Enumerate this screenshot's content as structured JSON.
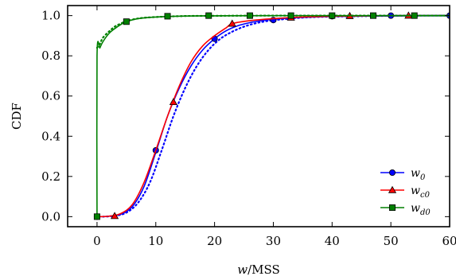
{
  "chart_data": {
    "type": "line",
    "title": "",
    "xlabel_var": "w",
    "xlabel_unit": "/MSS",
    "ylabel": "CDF",
    "xlim": [
      -5,
      60
    ],
    "ylim": [
      -0.05,
      1.05
    ],
    "xticks": [
      0,
      10,
      20,
      30,
      40,
      50,
      60
    ],
    "yticks": [
      0.0,
      0.2,
      0.4,
      0.6,
      0.8,
      1.0
    ],
    "ytick_labels": [
      "0.0",
      "0.2",
      "0.4",
      "0.6",
      "0.8",
      "1.0"
    ],
    "grid": false,
    "legend_position": "bottom-right",
    "series": [
      {
        "name": "w",
        "name_sub": "0",
        "color": "#0000ff",
        "marker": "circle",
        "curve": [
          [
            0,
            0.0
          ],
          [
            2,
            0.002
          ],
          [
            4,
            0.012
          ],
          [
            6,
            0.05
          ],
          [
            8,
            0.15
          ],
          [
            10,
            0.32
          ],
          [
            12,
            0.5
          ],
          [
            14,
            0.64
          ],
          [
            16,
            0.75
          ],
          [
            18,
            0.83
          ],
          [
            20,
            0.885
          ],
          [
            22,
            0.925
          ],
          [
            24,
            0.95
          ],
          [
            26,
            0.965
          ],
          [
            28,
            0.975
          ],
          [
            30,
            0.982
          ],
          [
            34,
            0.99
          ],
          [
            40,
            0.996
          ],
          [
            50,
            0.999
          ],
          [
            60,
            1.0
          ]
        ],
        "reference_curve": [
          [
            1,
            0.0
          ],
          [
            3,
            0.004
          ],
          [
            5,
            0.02
          ],
          [
            7,
            0.07
          ],
          [
            9,
            0.17
          ],
          [
            11,
            0.33
          ],
          [
            13,
            0.5
          ],
          [
            15,
            0.64
          ],
          [
            17,
            0.75
          ],
          [
            19,
            0.83
          ],
          [
            21,
            0.885
          ],
          [
            23,
            0.92
          ],
          [
            25,
            0.945
          ],
          [
            27,
            0.962
          ],
          [
            29,
            0.973
          ],
          [
            31,
            0.98
          ],
          [
            35,
            0.99
          ],
          [
            40,
            0.995
          ],
          [
            50,
            0.999
          ],
          [
            60,
            1.0
          ]
        ],
        "markers": [
          [
            0,
            0.0
          ],
          [
            10,
            0.33
          ],
          [
            20,
            0.885
          ],
          [
            30,
            0.978
          ],
          [
            40,
            0.997
          ],
          [
            50,
            1.0
          ],
          [
            60,
            1.0
          ]
        ]
      },
      {
        "name": "w",
        "name_sub": "c0",
        "color": "#ff0000",
        "marker": "triangle",
        "curve": [
          [
            0,
            0.0
          ],
          [
            2,
            0.002
          ],
          [
            4,
            0.015
          ],
          [
            6,
            0.06
          ],
          [
            8,
            0.17
          ],
          [
            10,
            0.33
          ],
          [
            12,
            0.5
          ],
          [
            14,
            0.65
          ],
          [
            16,
            0.77
          ],
          [
            18,
            0.85
          ],
          [
            20,
            0.9
          ],
          [
            22,
            0.94
          ],
          [
            23,
            0.96
          ],
          [
            26,
            0.975
          ],
          [
            30,
            0.985
          ],
          [
            35,
            0.993
          ],
          [
            43,
            0.998
          ],
          [
            53,
            1.0
          ],
          [
            60,
            1.0
          ]
        ],
        "markers": [
          [
            3,
            0.003
          ],
          [
            13,
            0.57
          ],
          [
            23,
            0.96
          ],
          [
            33,
            0.99
          ],
          [
            43,
            0.998
          ],
          [
            53,
            1.0
          ]
        ]
      },
      {
        "name": "w",
        "name_sub": "d0",
        "color": "#008000",
        "marker": "square",
        "curve": [
          [
            0,
            0.0
          ],
          [
            0,
            0.8
          ],
          [
            0.5,
            0.84
          ],
          [
            1,
            0.87
          ],
          [
            2,
            0.91
          ],
          [
            3,
            0.935
          ],
          [
            4,
            0.955
          ],
          [
            5,
            0.97
          ],
          [
            7,
            0.985
          ],
          [
            10,
            0.993
          ],
          [
            15,
            0.998
          ],
          [
            20,
            0.999
          ],
          [
            30,
            1.0
          ],
          [
            60,
            1.0
          ]
        ],
        "reference_curve": [
          [
            0,
            0.84
          ],
          [
            0.5,
            0.86
          ],
          [
            1,
            0.89
          ],
          [
            2,
            0.92
          ],
          [
            3,
            0.945
          ],
          [
            4,
            0.96
          ],
          [
            5,
            0.972
          ],
          [
            7,
            0.986
          ],
          [
            10,
            0.993
          ],
          [
            15,
            0.998
          ],
          [
            20,
            0.999
          ],
          [
            30,
            1.0
          ],
          [
            60,
            1.0
          ]
        ],
        "markers": [
          [
            0,
            0.0
          ],
          [
            5,
            0.97
          ],
          [
            12,
            0.997
          ],
          [
            19,
            1.0
          ],
          [
            26,
            1.0
          ],
          [
            33,
            1.0
          ],
          [
            40,
            1.0
          ],
          [
            47,
            1.0
          ],
          [
            54,
            1.0
          ]
        ]
      }
    ]
  }
}
